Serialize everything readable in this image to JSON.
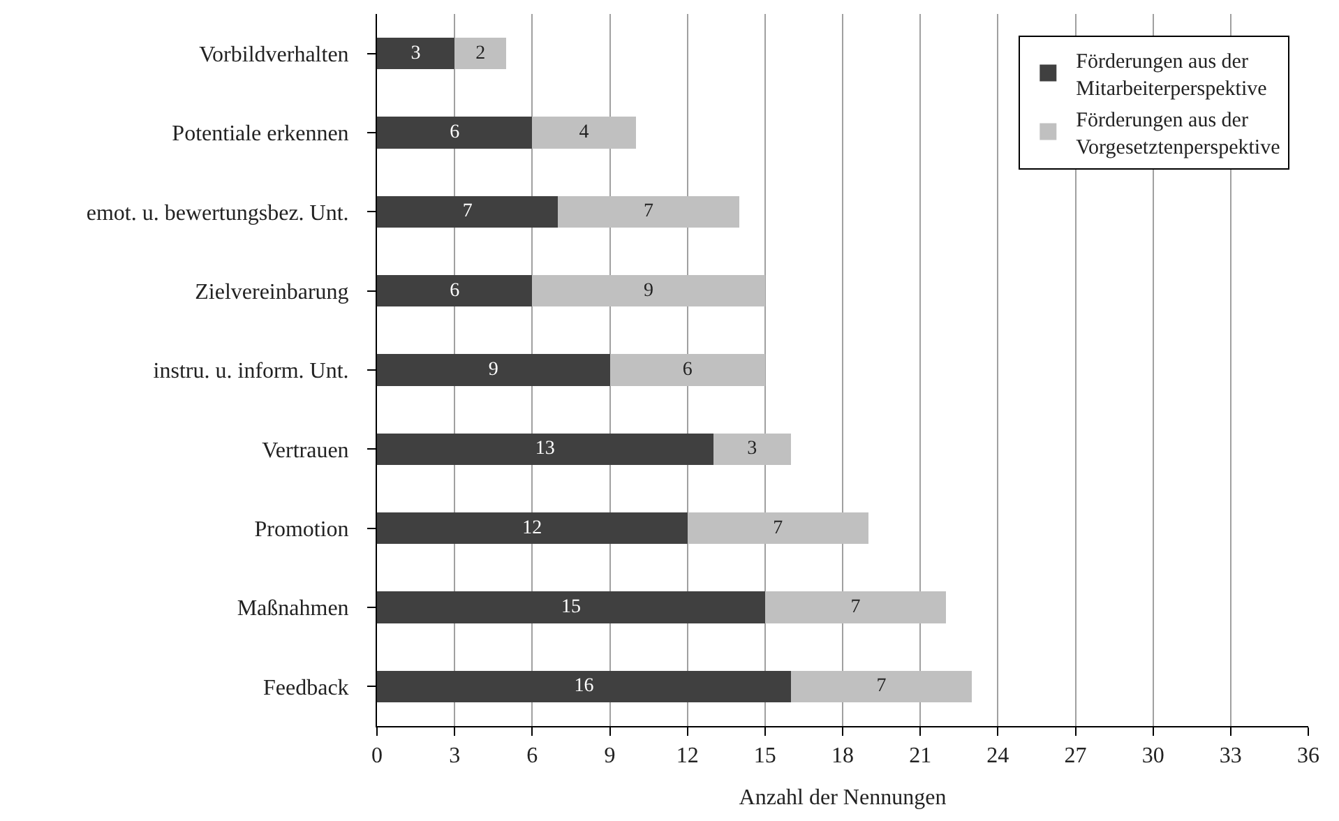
{
  "chart_data": {
    "type": "bar",
    "orientation": "horizontal",
    "stacked": true,
    "xlabel": "Anzahl der Nennungen",
    "categories": [
      "Vorbildverhalten",
      "Potentiale erkennen",
      "emot. u. bewertungsbez. Unt.",
      "Zielvereinbarung",
      "instru. u. inform. Unt.",
      "Vertrauen",
      "Promotion",
      "Maßnahmen",
      "Feedback"
    ],
    "series": [
      {
        "name": "Förderungen aus der Mitarbeiterperspektive",
        "color": "#404040",
        "values": [
          3,
          6,
          7,
          6,
          9,
          13,
          12,
          15,
          16
        ]
      },
      {
        "name": "Förderungen aus der Vorgesetztenperspektive",
        "color": "#c0c0c0",
        "values": [
          2,
          4,
          7,
          9,
          6,
          3,
          7,
          7,
          7
        ]
      }
    ],
    "xlim": [
      0,
      36
    ],
    "xticks": [
      0,
      3,
      6,
      9,
      12,
      15,
      18,
      21,
      24,
      27,
      30,
      33,
      36
    ],
    "grid": "x",
    "legend": "top right",
    "data_labels": true
  }
}
